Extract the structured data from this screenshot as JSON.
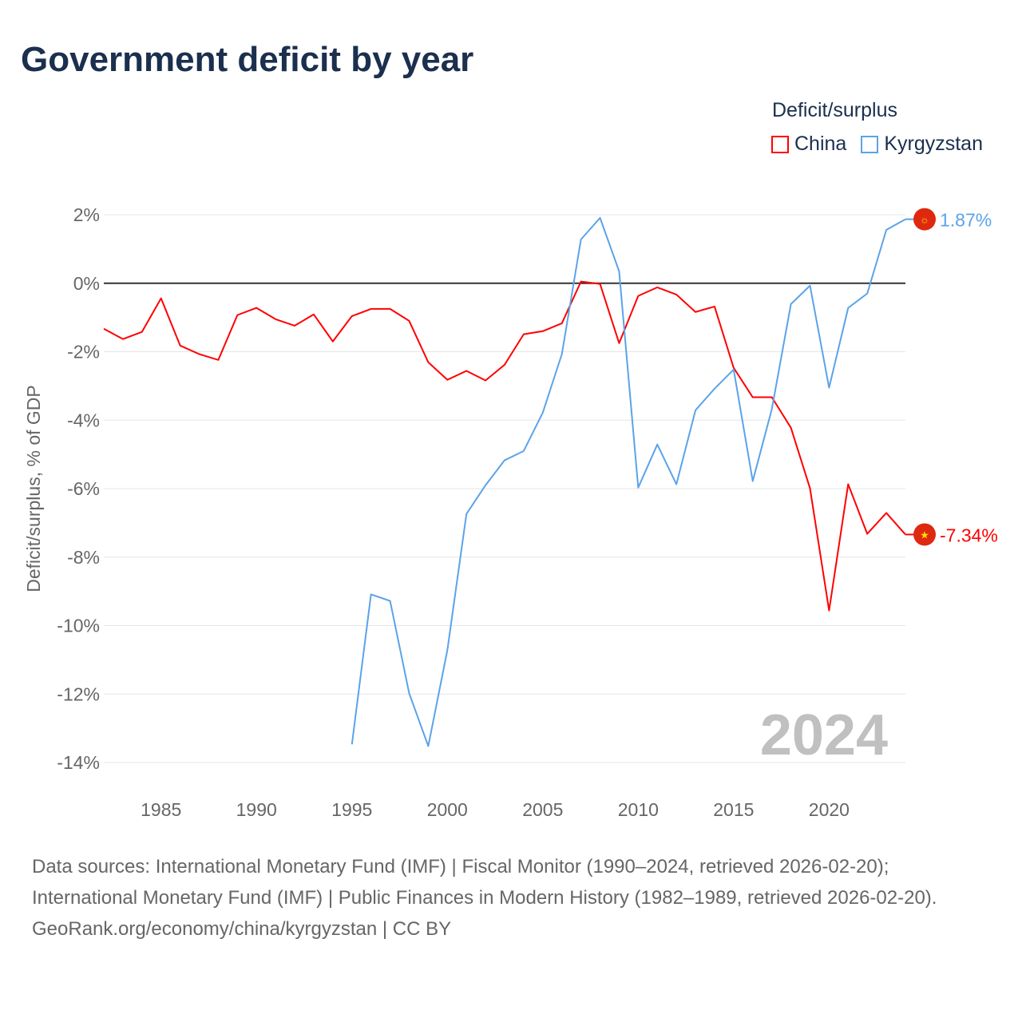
{
  "title": "Government deficit by year",
  "legend": {
    "title": "Deficit/surplus",
    "items": [
      {
        "label": "China",
        "color": "#ff0000"
      },
      {
        "label": "Kyrgyzstan",
        "color": "#5ba3e8"
      }
    ]
  },
  "chart_data": {
    "type": "line",
    "title": "Government deficit by year",
    "xlabel": "",
    "ylabel": "Deficit/surplus, % of GDP",
    "xlim": [
      1982,
      2024
    ],
    "ylim": [
      -14,
      2
    ],
    "x_ticks": [
      1985,
      1990,
      1995,
      2000,
      2005,
      2010,
      2015,
      2020
    ],
    "y_ticks": [
      2,
      0,
      -2,
      -4,
      -6,
      -8,
      -10,
      -12,
      -14
    ],
    "y_tick_labels": [
      "2%",
      "0%",
      "-2%",
      "-4%",
      "-6%",
      "-8%",
      "-10%",
      "-12%",
      "-14%"
    ],
    "grid": true,
    "year_watermark": "2024",
    "series": [
      {
        "name": "China",
        "color": "#ff0000",
        "end_label": "-7.34%",
        "x": [
          1982,
          1983,
          1984,
          1985,
          1986,
          1987,
          1988,
          1989,
          1990,
          1991,
          1992,
          1993,
          1994,
          1995,
          1996,
          1997,
          1998,
          1999,
          2000,
          2001,
          2002,
          2003,
          2004,
          2005,
          2006,
          2007,
          2008,
          2009,
          2010,
          2011,
          2012,
          2013,
          2014,
          2015,
          2016,
          2017,
          2018,
          2019,
          2020,
          2021,
          2022,
          2023,
          2024
        ],
        "values": [
          -1.33,
          -1.63,
          -1.42,
          -0.44,
          -1.82,
          -2.07,
          -2.24,
          -0.93,
          -0.72,
          -1.05,
          -1.24,
          -0.91,
          -1.7,
          -0.96,
          -0.75,
          -0.75,
          -1.1,
          -2.31,
          -2.82,
          -2.56,
          -2.84,
          -2.38,
          -1.49,
          -1.4,
          -1.17,
          0.05,
          -0.02,
          -1.75,
          -0.37,
          -0.12,
          -0.33,
          -0.84,
          -0.68,
          -2.47,
          -3.33,
          -3.33,
          -4.22,
          -5.99,
          -9.56,
          -5.87,
          -7.32,
          -6.71,
          -7.34
        ]
      },
      {
        "name": "Kyrgyzstan",
        "color": "#5ba3e8",
        "end_label": "1.87%",
        "x": [
          1995,
          1996,
          1997,
          1998,
          1999,
          2000,
          2001,
          2002,
          2003,
          2004,
          2005,
          2006,
          2007,
          2008,
          2009,
          2010,
          2011,
          2012,
          2013,
          2014,
          2015,
          2016,
          2017,
          2018,
          2019,
          2020,
          2021,
          2022,
          2023,
          2024
        ],
        "values": [
          -13.47,
          -9.09,
          -9.28,
          -11.98,
          -13.52,
          -10.72,
          -6.74,
          -5.9,
          -5.17,
          -4.9,
          -3.78,
          -2.07,
          1.28,
          1.91,
          0.35,
          -5.97,
          -4.71,
          -5.87,
          -3.71,
          -3.08,
          -2.52,
          -5.78,
          -3.68,
          -0.61,
          -0.07,
          -3.05,
          -0.72,
          -0.3,
          1.56,
          1.87
        ]
      }
    ]
  },
  "footer": {
    "sources": "Data sources: International Monetary Fund (IMF) | Fiscal Monitor (1990–2024, retrieved 2026-02-20); International Monetary Fund (IMF) | Public Finances in Modern History (1982–1989, retrieved 2026-02-20).",
    "credit": "GeoRank.org/economy/china/kyrgyzstan | CC BY"
  }
}
